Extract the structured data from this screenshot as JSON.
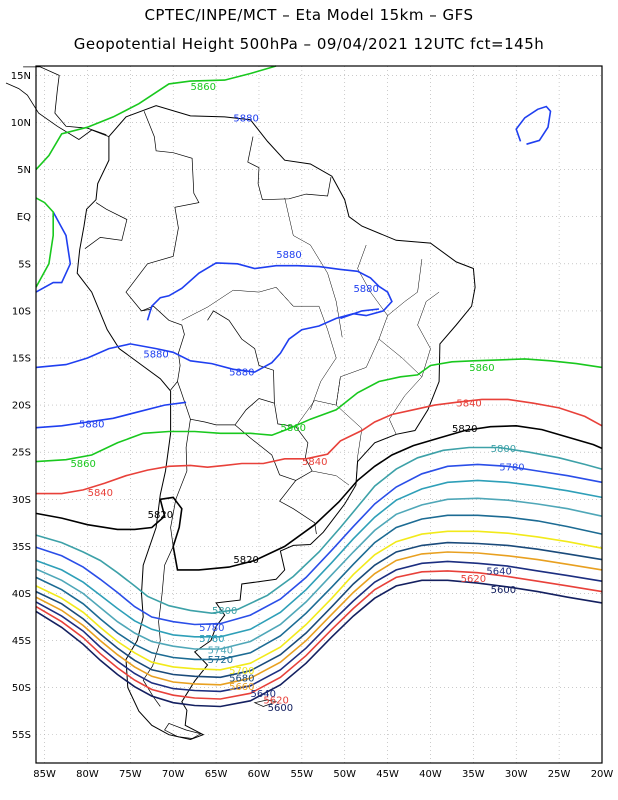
{
  "header": {
    "line1": "CPTEC/INPE/MCT –  Eta Model 15km – GFS",
    "line2": "Geopotential Height 500hPa – 09/04/2021 12UTC fct=145h"
  },
  "axes": {
    "lat_labels": [
      "15N",
      "10N",
      "5N",
      "EQ",
      "5S",
      "10S",
      "15S",
      "20S",
      "25S",
      "30S",
      "35S",
      "40S",
      "45S",
      "50S",
      "55S"
    ],
    "lon_labels": [
      "85W",
      "80W",
      "75W",
      "70W",
      "65W",
      "60W",
      "55W",
      "50W",
      "45W",
      "40W",
      "35W",
      "30W",
      "25W",
      "20W"
    ],
    "lat_range": [
      -58,
      16
    ],
    "lon_range": [
      -86,
      -20
    ],
    "grid": "dotted"
  },
  "map_data": {
    "type": "contour",
    "variable": "Geopotential Height 500hPa",
    "contours": [
      {
        "level": 5880,
        "color": "#1f3ff0",
        "labels": [
          {
            "text": "5880",
            "lon": -61.5,
            "lat": 10.5
          },
          {
            "text": "5880",
            "lon": -56.5,
            "lat": -4.0
          },
          {
            "text": "5880",
            "lon": -47.5,
            "lat": -7.6
          },
          {
            "text": "5880",
            "lon": -72.0,
            "lat": -14.6
          },
          {
            "text": "5880",
            "lon": -62.0,
            "lat": -16.5
          },
          {
            "text": "5880",
            "lon": -79.5,
            "lat": -22.0
          }
        ]
      },
      {
        "level": 5860,
        "color": "#19c81e",
        "labels": [
          {
            "text": "5860",
            "lon": -66.5,
            "lat": 13.8
          },
          {
            "text": "5860",
            "lon": -34.0,
            "lat": -16.0
          },
          {
            "text": "5860",
            "lon": -56.0,
            "lat": -22.4
          },
          {
            "text": "5860",
            "lon": -80.5,
            "lat": -26.2
          }
        ]
      },
      {
        "level": 5840,
        "color": "#e8413a",
        "labels": [
          {
            "text": "5840",
            "lon": -35.5,
            "lat": -19.8
          },
          {
            "text": "5840",
            "lon": -53.5,
            "lat": -26.0
          },
          {
            "text": "5840",
            "lon": -78.5,
            "lat": -29.3
          }
        ]
      },
      {
        "level": 5820,
        "color": "#000000",
        "labels": [
          {
            "text": "5820",
            "lon": -36.0,
            "lat": -22.5
          },
          {
            "text": "5820",
            "lon": -71.5,
            "lat": -31.6
          },
          {
            "text": "5820",
            "lon": -61.5,
            "lat": -36.4
          }
        ]
      },
      {
        "level": 5800,
        "color": "#3da1a8",
        "labels": [
          {
            "text": "5800",
            "lon": -31.5,
            "lat": -24.6
          },
          {
            "text": "5800",
            "lon": -64.0,
            "lat": -41.8
          }
        ]
      },
      {
        "level": 5780,
        "color": "#2a4ee8",
        "labels": [
          {
            "text": "5780",
            "lon": -30.5,
            "lat": -26.6
          },
          {
            "text": "5780",
            "lon": -65.5,
            "lat": -43.6
          }
        ]
      },
      {
        "level": 5760,
        "color": "#2e9fb8",
        "labels": [
          {
            "text": "5760",
            "lon": -65.5,
            "lat": -44.8
          }
        ]
      },
      {
        "level": 5740,
        "color": "#4fa7b8",
        "labels": [
          {
            "text": "5740",
            "lon": -64.5,
            "lat": -46.0
          }
        ]
      },
      {
        "level": 5720,
        "color": "#1c6b93",
        "labels": [
          {
            "text": "5720",
            "lon": -64.5,
            "lat": -47.0
          }
        ]
      },
      {
        "level": 5700,
        "color": "#f2ea1a",
        "labels": [
          {
            "text": "5700",
            "lon": -62.0,
            "lat": -48.2
          }
        ]
      },
      {
        "level": 5680,
        "color": "#1a4a7a",
        "labels": [
          {
            "text": "5680",
            "lon": -62.0,
            "lat": -49.0
          }
        ]
      },
      {
        "level": 5660,
        "color": "#e8a020",
        "labels": [
          {
            "text": "5660",
            "lon": -62.0,
            "lat": -49.9
          }
        ]
      },
      {
        "level": 5640,
        "color": "#1c2e80",
        "labels": [
          {
            "text": "5640",
            "lon": -59.5,
            "lat": -50.6
          },
          {
            "text": "5640",
            "lon": -32.0,
            "lat": -37.6
          }
        ]
      },
      {
        "level": 5620,
        "color": "#e8413a",
        "labels": [
          {
            "text": "5620",
            "lon": -58.0,
            "lat": -51.3
          },
          {
            "text": "5620",
            "lon": -35.0,
            "lat": -38.4
          }
        ]
      },
      {
        "level": 5600,
        "color": "#142060",
        "labels": [
          {
            "text": "5600",
            "lon": -57.5,
            "lat": -52.1
          },
          {
            "text": "5600",
            "lon": -31.5,
            "lat": -39.6
          }
        ]
      }
    ]
  }
}
